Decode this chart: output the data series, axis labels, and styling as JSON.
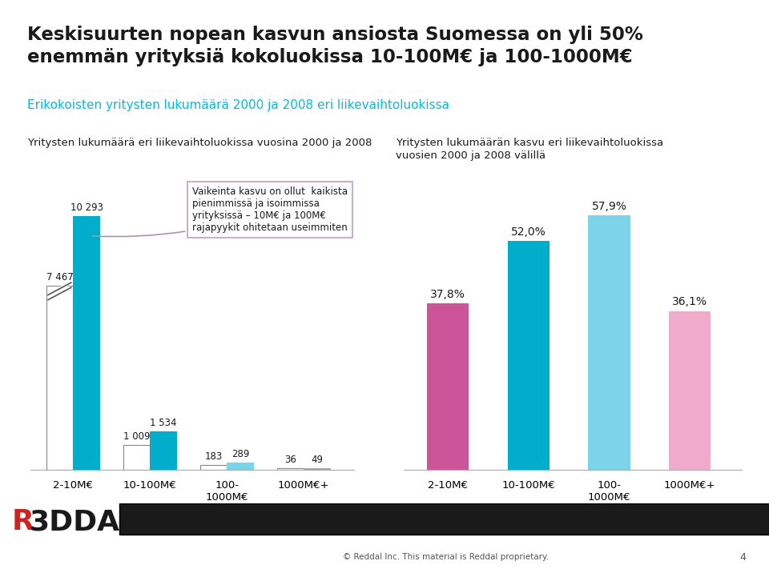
{
  "title_line1": "Keskisuurten nopean kasvun ansiosta Suomessa on yli 50%",
  "title_line2": "enemmän yrityksiä kokoluokissa 10-100M€ ja 100-1000M€",
  "subtitle": "Erikokoisten yritysten lukumäärä 2000 ja 2008 eri liikevaihtoluokissa",
  "left_chart_title": "Yritysten lukumäärä eri liikevaihtoluokissa vuosina 2000 ja 2008",
  "right_chart_title": "Yritysten lukumäärän kasvu eri liikevaihtoluokissa vuosien 2000 ja 2008 välillä",
  "left_categories": [
    "2-10M€",
    "10-100M€",
    "100-\n1000M€",
    "1000M€+"
  ],
  "right_categories": [
    "2-10M€",
    "10-100M€",
    "100-\n1000M€",
    "1000M€+"
  ],
  "values_2000": [
    7467,
    1009,
    183,
    36
  ],
  "values_2008": [
    10293,
    1534,
    289,
    49
  ],
  "labels_2000": [
    "7 467",
    "1 009",
    "183",
    "36"
  ],
  "labels_2008": [
    "10 293",
    "1 534",
    "289",
    "49"
  ],
  "growth_values": [
    37.8,
    52.0,
    57.9,
    36.1
  ],
  "growth_labels": [
    "37,8%",
    "52,0%",
    "57,9%",
    "36,1%"
  ],
  "bar_color_2000": "#ffffff",
  "bar_color_2008": "#00AECC",
  "bar_color_2008_light": "#7DD3E8",
  "bar_color_2008_grey": "#A8A8A8",
  "growth_colors": [
    "#CC5599",
    "#00AECC",
    "#7DD3E8",
    "#F0AACC"
  ],
  "title_color": "#1a1a1a",
  "subtitle_color": "#00BBDD",
  "annotation_text": "Vaikeinta kasvu on ollut  kaikista\npienimmissä ja isoimmissa\nyrityksissä – 10M€ ja 100M€\nrajapyykit ohitetaan useimmiten",
  "bg_color": "#ffffff",
  "footer_text": "© Reddal Inc. This material is Reddal proprietary.",
  "page_number": "4",
  "black_bar_color": "#1a1a1a",
  "border_color_2000": "#888888",
  "annotation_border": "#C0A0C0",
  "annotation_arrow": "#B090B0"
}
